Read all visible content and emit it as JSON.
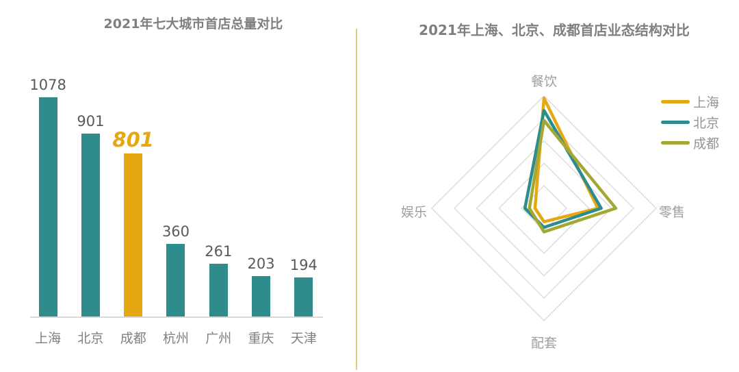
{
  "left_panel": {
    "title": "2021年七大城市首店总量对比"
  },
  "right_panel": {
    "title": "2021年上海、北京、成都首店业态结构对比"
  },
  "divider": {
    "color": "#e7c684"
  },
  "chart_data": [
    {
      "type": "bar",
      "title": "2021年七大城市首店总量对比",
      "categories": [
        "上海",
        "北京",
        "成都",
        "杭州",
        "广州",
        "重庆",
        "天津"
      ],
      "values": [
        1078,
        901,
        801,
        360,
        261,
        203,
        194
      ],
      "highlight_index": 2,
      "colors": {
        "bar": "#2f8c8c",
        "highlight": "#e5a812",
        "value_label": "#595959",
        "highlight_value_label": "#e5a812",
        "category_label": "#808080",
        "axis_line": "#d9d9d9"
      },
      "ylim": [
        0,
        1100
      ],
      "grid": false,
      "value_labels": true,
      "legend_position": "none"
    },
    {
      "type": "radar",
      "title": "2021年上海、北京、成都首店业态结构对比",
      "axes": [
        "餐饮",
        "零售",
        "配套",
        "娱乐"
      ],
      "rings": 5,
      "max": 100,
      "grid_color": "#d9d9d9",
      "series": [
        {
          "name": "上海",
          "color": "#e5a812",
          "values": [
            98,
            48,
            12,
            8
          ]
        },
        {
          "name": "北京",
          "color": "#2f8c8c",
          "values": [
            87,
            51,
            17,
            17
          ]
        },
        {
          "name": "成都",
          "color": "#a3a834",
          "values": [
            78,
            64,
            21,
            13
          ]
        }
      ],
      "legend_position": "right"
    }
  ]
}
